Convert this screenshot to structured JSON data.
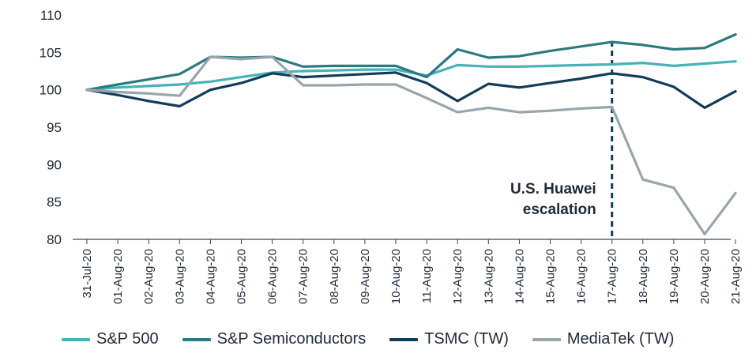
{
  "chart_data": {
    "type": "line",
    "title": "",
    "xlabel": "",
    "ylabel": "",
    "ylim": [
      80,
      110
    ],
    "yticks": [
      80,
      85,
      90,
      95,
      100,
      105,
      110
    ],
    "grid": false,
    "legend_position": "bottom",
    "categories": [
      "31-Jul-20",
      "01-Aug-20",
      "02-Aug-20",
      "03-Aug-20",
      "04-Aug-20",
      "05-Aug-20",
      "06-Aug-20",
      "07-Aug-20",
      "08-Aug-20",
      "09-Aug-20",
      "10-Aug-20",
      "11-Aug-20",
      "12-Aug-20",
      "13-Aug-20",
      "14-Aug-20",
      "15-Aug-20",
      "16-Aug-20",
      "17-Aug-20",
      "18-Aug-20",
      "19-Aug-20",
      "20-Aug-20",
      "21-Aug-20"
    ],
    "series": [
      {
        "name": "S&P 500",
        "color": "#45b3b7",
        "values": [
          100.0,
          100.3,
          100.5,
          100.7,
          101.1,
          101.7,
          102.3,
          102.5,
          102.6,
          102.7,
          102.7,
          101.9,
          103.3,
          103.1,
          103.1,
          103.2,
          103.3,
          103.4,
          103.6,
          103.2,
          103.5,
          103.8
        ]
      },
      {
        "name": "S&P Semiconductors",
        "color": "#2c7a80",
        "values": [
          100.0,
          100.7,
          101.4,
          102.1,
          104.4,
          104.3,
          104.4,
          103.1,
          103.2,
          103.2,
          103.2,
          101.7,
          105.4,
          104.3,
          104.5,
          105.2,
          105.8,
          106.4,
          106.0,
          105.4,
          105.6,
          107.4
        ]
      },
      {
        "name": "TSMC (TW)",
        "color": "#123c57",
        "values": [
          100.0,
          99.3,
          98.5,
          97.8,
          100.0,
          100.9,
          102.2,
          101.7,
          101.9,
          102.1,
          102.3,
          100.9,
          98.5,
          100.8,
          100.3,
          100.9,
          101.5,
          102.2,
          101.7,
          100.4,
          97.6,
          99.8
        ]
      },
      {
        "name": "MediaTek (TW)",
        "color": "#98a6ac",
        "values": [
          100.0,
          99.7,
          99.5,
          99.2,
          104.4,
          104.1,
          104.4,
          100.6,
          100.6,
          100.7,
          100.7,
          98.9,
          97.0,
          97.6,
          97.0,
          97.2,
          97.5,
          97.7,
          88.0,
          86.9,
          80.7,
          86.2
        ]
      }
    ],
    "annotation": {
      "lines": [
        "U.S. Huawei",
        "escalation"
      ],
      "at_category": "17-Aug-20",
      "line_style": "dashed",
      "color": "#123c57"
    }
  }
}
